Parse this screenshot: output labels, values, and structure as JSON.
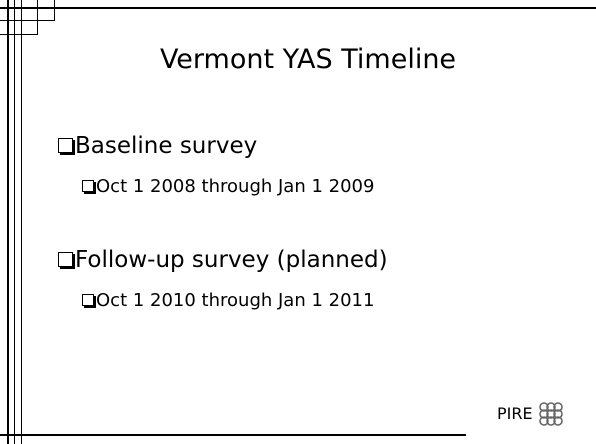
{
  "slide": {
    "title": "Vermont YAS Timeline",
    "bullets": [
      {
        "text": "Baseline survey",
        "sub": [
          "Oct 1 2008 through Jan 1 2009"
        ]
      },
      {
        "text": "Follow-up survey (planned)",
        "sub": [
          "Oct 1 2010 through Jan 1 2011"
        ]
      }
    ],
    "footer": {
      "logo_text": "PIRE"
    }
  }
}
